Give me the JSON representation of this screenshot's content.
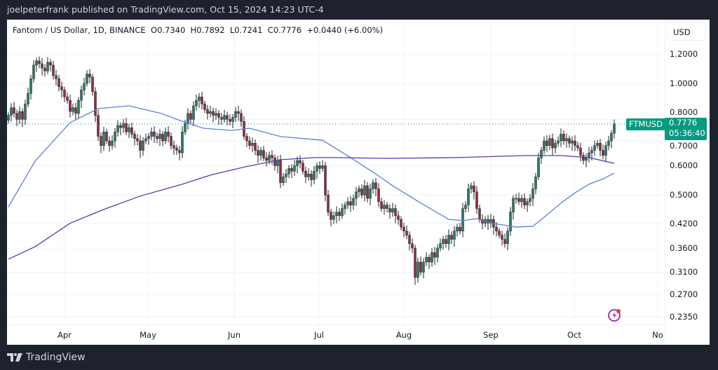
{
  "header": {
    "published": "joelpeterfrank published on TradingView.com, Oct 15, 2024 14:23 UTC-4"
  },
  "legend": {
    "symbol": "Fantom / US Dollar, 1D, BINANCE",
    "open": "O0.7340",
    "high": "H0.7892",
    "low": "L0.7241",
    "close": "C0.7776",
    "change": "+0.0440 (+6.00%)"
  },
  "price_axis": {
    "currency": "USD",
    "ticks": [
      "1.2000",
      "1.0000",
      "0.8000",
      "0.7000",
      "0.6000",
      "0.5000",
      "0.4200",
      "0.3600",
      "0.3100",
      "0.2700",
      "0.2350"
    ]
  },
  "time_axis": {
    "ticks": [
      "Apr",
      "May",
      "Jun",
      "Jul",
      "Aug",
      "Sep",
      "Oct",
      "No"
    ]
  },
  "last_price": {
    "symbol": "FTMUSD",
    "price": "0.7776",
    "countdown": "05:36:40",
    "color": "#089981"
  },
  "brand": {
    "name": "TradingView"
  },
  "colors": {
    "up": "#2c7a68",
    "down": "#8c2f3f",
    "ma_fast": "#5b82d8",
    "ma_slow": "#4b3fb0",
    "background": "#1e222d"
  },
  "icons": {
    "alert": "lightning-alert-icon",
    "logo": "tradingview-logo-icon"
  },
  "chart_data": {
    "type": "candlestick",
    "scale": "log",
    "ylim": [
      0.225,
      1.35
    ],
    "grid": true,
    "start_tick": "Apr",
    "closes": [
      0.82,
      0.86,
      0.83,
      0.8,
      0.84,
      0.8,
      0.88,
      0.94,
      1.03,
      1.12,
      1.15,
      1.13,
      1.1,
      1.08,
      1.14,
      1.12,
      1.05,
      1.03,
      0.98,
      0.96,
      0.92,
      0.9,
      0.84,
      0.86,
      0.83,
      0.9,
      0.96,
      1.0,
      1.06,
      1.04,
      0.95,
      0.82,
      0.72,
      0.68,
      0.74,
      0.7,
      0.68,
      0.7,
      0.74,
      0.77,
      0.76,
      0.78,
      0.74,
      0.76,
      0.73,
      0.71,
      0.7,
      0.66,
      0.7,
      0.71,
      0.72,
      0.74,
      0.72,
      0.71,
      0.73,
      0.7,
      0.74,
      0.72,
      0.68,
      0.67,
      0.66,
      0.65,
      0.74,
      0.78,
      0.83,
      0.8,
      0.87,
      0.9,
      0.92,
      0.88,
      0.85,
      0.83,
      0.84,
      0.82,
      0.83,
      0.81,
      0.8,
      0.82,
      0.8,
      0.79,
      0.81,
      0.84,
      0.83,
      0.79,
      0.72,
      0.7,
      0.68,
      0.69,
      0.66,
      0.64,
      0.66,
      0.63,
      0.62,
      0.64,
      0.63,
      0.6,
      0.62,
      0.54,
      0.56,
      0.57,
      0.59,
      0.58,
      0.6,
      0.62,
      0.61,
      0.58,
      0.56,
      0.57,
      0.55,
      0.58,
      0.6,
      0.59,
      0.6,
      0.5,
      0.45,
      0.43,
      0.44,
      0.45,
      0.44,
      0.46,
      0.47,
      0.48,
      0.47,
      0.49,
      0.51,
      0.52,
      0.5,
      0.53,
      0.49,
      0.52,
      0.54,
      0.52,
      0.48,
      0.46,
      0.47,
      0.46,
      0.45,
      0.46,
      0.44,
      0.43,
      0.41,
      0.4,
      0.39,
      0.37,
      0.36,
      0.3,
      0.33,
      0.31,
      0.33,
      0.34,
      0.33,
      0.35,
      0.34,
      0.36,
      0.37,
      0.38,
      0.37,
      0.39,
      0.38,
      0.4,
      0.41,
      0.4,
      0.46,
      0.47,
      0.52,
      0.53,
      0.51,
      0.46,
      0.43,
      0.42,
      0.43,
      0.42,
      0.43,
      0.41,
      0.4,
      0.39,
      0.38,
      0.37,
      0.4,
      0.45,
      0.49,
      0.49,
      0.48,
      0.49,
      0.47,
      0.48,
      0.49,
      0.52,
      0.56,
      0.63,
      0.66,
      0.7,
      0.68,
      0.71,
      0.67,
      0.69,
      0.7,
      0.73,
      0.7,
      0.71,
      0.69,
      0.7,
      0.68,
      0.67,
      0.64,
      0.62,
      0.63,
      0.65,
      0.66,
      0.68,
      0.69,
      0.66,
      0.64,
      0.68,
      0.7,
      0.734,
      0.7776
    ],
    "series": [
      {
        "type": "line",
        "points": [
          [
            0,
            0.465
          ],
          [
            9.5,
            0.617
          ],
          [
            22,
            0.784
          ],
          [
            32,
            0.855
          ],
          [
            43,
            0.87
          ],
          [
            54.5,
            0.83
          ],
          [
            62,
            0.79
          ],
          [
            69.5,
            0.757
          ],
          [
            79.5,
            0.747
          ],
          [
            86,
            0.757
          ],
          [
            97,
            0.719
          ],
          [
            112,
            0.703
          ],
          [
            122,
            0.631
          ],
          [
            131,
            0.57
          ],
          [
            137,
            0.53
          ],
          [
            147,
            0.476
          ],
          [
            157,
            0.43
          ],
          [
            162,
            0.427
          ],
          [
            167,
            0.432
          ],
          [
            172,
            0.42
          ],
          [
            178,
            0.414
          ],
          [
            181,
            0.41
          ],
          [
            187,
            0.412
          ],
          [
            191,
            0.436
          ],
          [
            197,
            0.476
          ],
          [
            202,
            0.507
          ],
          [
            207,
            0.535
          ],
          [
            212,
            0.553
          ],
          [
            216,
            0.573
          ]
        ]
      },
      {
        "type": "line",
        "points": [
          [
            0,
            0.336
          ],
          [
            9.5,
            0.363
          ],
          [
            22,
            0.42
          ],
          [
            34.5,
            0.459
          ],
          [
            47,
            0.497
          ],
          [
            62,
            0.535
          ],
          [
            72,
            0.566
          ],
          [
            84.5,
            0.596
          ],
          [
            97,
            0.623
          ],
          [
            109.5,
            0.631
          ],
          [
            117,
            0.631
          ],
          [
            134.5,
            0.628
          ],
          [
            159.5,
            0.631
          ],
          [
            184.5,
            0.639
          ],
          [
            197,
            0.639
          ],
          [
            207,
            0.631
          ],
          [
            216,
            0.609
          ]
        ]
      }
    ]
  }
}
